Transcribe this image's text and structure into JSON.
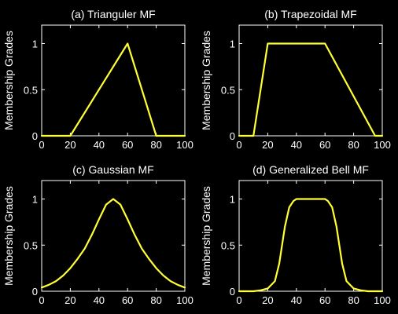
{
  "colors": {
    "background": "#000000",
    "axes": "#ffffff",
    "line": "#ffff33"
  },
  "chart_data": [
    {
      "type": "line",
      "title": "(a) Trianguler MF",
      "ylabel": "Membership Grades",
      "xlim": [
        0,
        100
      ],
      "ylim": [
        0,
        1.2
      ],
      "xticks": [
        "0",
        "20",
        "40",
        "60",
        "80",
        "100"
      ],
      "yticks": [
        "0",
        "0.5",
        "1"
      ],
      "series": [
        {
          "x": [
            0,
            20,
            60,
            80,
            100
          ],
          "y": [
            0,
            0,
            1,
            0,
            0
          ]
        }
      ]
    },
    {
      "type": "line",
      "title": "(b) Trapezoidal MF",
      "ylabel": "Membership Grades",
      "xlim": [
        0,
        100
      ],
      "ylim": [
        0,
        1.2
      ],
      "xticks": [
        "0",
        "20",
        "40",
        "60",
        "80",
        "100"
      ],
      "yticks": [
        "0",
        "0.5",
        "1"
      ],
      "series": [
        {
          "x": [
            0,
            10,
            20,
            60,
            95,
            100
          ],
          "y": [
            0,
            0,
            1,
            1,
            0,
            0
          ]
        }
      ]
    },
    {
      "type": "line",
      "title": "(c) Gaussian MF",
      "ylabel": "Membership Grades",
      "xlim": [
        0,
        100
      ],
      "ylim": [
        0,
        1.2
      ],
      "xticks": [
        "0",
        "20",
        "40",
        "60",
        "80",
        "100"
      ],
      "yticks": [
        "0",
        "0.5",
        "1"
      ],
      "series": [
        {
          "x": [
            0,
            5,
            10,
            15,
            20,
            25,
            30,
            35,
            40,
            45,
            50,
            55,
            60,
            65,
            70,
            75,
            80,
            85,
            90,
            95,
            100
          ],
          "y": [
            0.04,
            0.07,
            0.11,
            0.17,
            0.25,
            0.35,
            0.46,
            0.61,
            0.78,
            0.94,
            1.0,
            0.94,
            0.78,
            0.61,
            0.46,
            0.35,
            0.25,
            0.17,
            0.11,
            0.07,
            0.04
          ]
        }
      ]
    },
    {
      "type": "line",
      "title": "(d) Generalized Bell MF",
      "ylabel": "Membership Grades",
      "xlim": [
        0,
        100
      ],
      "ylim": [
        0,
        1.2
      ],
      "xticks": [
        "0",
        "20",
        "40",
        "60",
        "80",
        "100"
      ],
      "yticks": [
        "0",
        "0.5",
        "1"
      ],
      "series": [
        {
          "x": [
            0,
            10,
            15,
            20,
            25,
            28,
            30,
            32,
            35,
            38,
            40,
            45,
            50,
            55,
            60,
            62,
            65,
            68,
            70,
            72,
            75,
            80,
            85,
            90,
            100
          ],
          "y": [
            0.0,
            0.0,
            0.01,
            0.03,
            0.11,
            0.3,
            0.5,
            0.7,
            0.91,
            0.98,
            1.0,
            1.0,
            1.0,
            1.0,
            1.0,
            0.98,
            0.91,
            0.7,
            0.5,
            0.3,
            0.11,
            0.03,
            0.01,
            0.0,
            0.0
          ]
        }
      ]
    }
  ]
}
